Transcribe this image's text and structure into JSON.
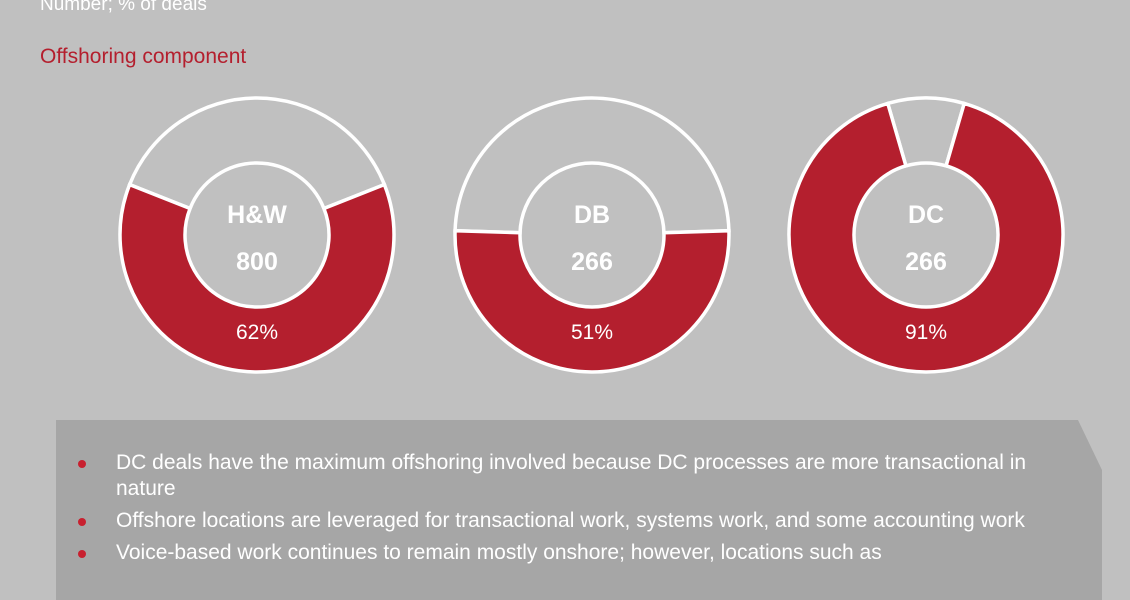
{
  "header": {
    "subtitle": "Number; % of deals",
    "section_title": "Offshoring component"
  },
  "colors": {
    "background": "#c0c0c0",
    "accent": "#b41f2e",
    "remainder": "#c0c0c0",
    "stroke": "#ffffff",
    "notes_panel": "#a6a6a6"
  },
  "chart_data": [
    {
      "type": "pie",
      "variant": "donut",
      "center_label": "H&W",
      "deal_count": "800",
      "offshoring_percent": 62,
      "percent_label": "62%"
    },
    {
      "type": "pie",
      "variant": "donut",
      "center_label": "DB",
      "deal_count": "266",
      "offshoring_percent": 51,
      "percent_label": "51%"
    },
    {
      "type": "pie",
      "variant": "donut",
      "center_label": "DC",
      "deal_count": "266",
      "offshoring_percent": 91,
      "percent_label": "91%"
    }
  ],
  "notes": [
    "DC deals have the maximum offshoring involved because DC processes are more transactional in nature",
    "Offshore locations are leveraged for transactional work, systems work, and some accounting work",
    "Voice-based work continues to remain mostly onshore; however, locations such as"
  ]
}
